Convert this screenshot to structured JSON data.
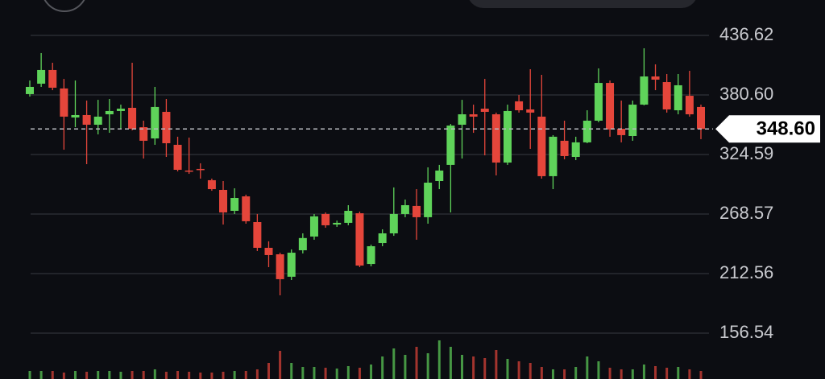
{
  "chart_data": {
    "type": "candlestick",
    "ylim": [
      156.54,
      436.62
    ],
    "yticks": [
      156.54,
      212.56,
      268.57,
      324.59,
      {
        "value": 380.6,
        "label": "380.60"
      },
      436.62
    ],
    "grid": true,
    "up_color": "#5fd35a",
    "down_color": "#e5463b",
    "last_price": {
      "value": 348.6,
      "label": "348.60"
    },
    "open": [
      381.4,
      391.2,
      404.1,
      386.7,
      359.4,
      361.7,
      352.6,
      362.4,
      365.5,
      368.5,
      350.3,
      339.7,
      364.7,
      333.7,
      309.5,
      311.0,
      300.4,
      291.3,
      271.6,
      285.2,
      261.0,
      236.8,
      230.7,
      209.6,
      234.5,
      247.4,
      268.6,
      258.7,
      260.3,
      269.3,
      221.6,
      241.3,
      250.4,
      268.6,
      276.2,
      265.6,
      299.6,
      314.8,
      352.6,
      362.4,
      367.7,
      362.4,
      317.0,
      374.6,
      367.0,
      360.2,
      304.2,
      337.5,
      322.3,
      336.0,
      356.4,
      391.9,
      348.8,
      342.0,
      371.5,
      398.0,
      392.7,
      366.2,
      379.8,
      369.3
    ],
    "high": [
      394.2,
      420.0,
      410.9,
      395.7,
      394.2,
      375.3,
      376.0,
      376.8,
      371.5,
      410.9,
      356.4,
      388.2,
      376.8,
      341.3,
      340.5,
      316.3,
      301.9,
      299.6,
      292.8,
      286.8,
      268.6,
      242.9,
      232.2,
      235.3,
      250.4,
      268.6,
      270.1,
      262.4,
      276.9,
      270.9,
      239.8,
      254.2,
      293.6,
      282.2,
      292.0,
      312.5,
      314.8,
      353.3,
      376.0,
      371.5,
      395.7,
      364.0,
      371.5,
      380.6,
      404.8,
      399.5,
      342.8,
      356.4,
      341.3,
      366.2,
      405.6,
      394.2,
      375.3,
      375.3,
      424.5,
      409.4,
      400.3,
      400.3,
      403.3,
      371.5
    ],
    "low": [
      379.1,
      388.2,
      385.1,
      329.1,
      350.3,
      315.5,
      343.5,
      345.0,
      348.8,
      347.3,
      320.8,
      333.7,
      322.3,
      308.7,
      306.4,
      301.9,
      290.5,
      258.7,
      268.6,
      259.5,
      233.8,
      218.6,
      192.1,
      206.5,
      231.5,
      244.4,
      255.7,
      256.5,
      258.0,
      218.6,
      219.4,
      238.3,
      248.1,
      265.6,
      244.4,
      259.5,
      292.0,
      270.1,
      320.8,
      345.0,
      323.8,
      304.9,
      314.8,
      364.0,
      329.9,
      301.9,
      292.0,
      320.1,
      319.3,
      335.2,
      354.9,
      341.3,
      336.0,
      337.5,
      370.8,
      385.1,
      364.0,
      362.4,
      360.2,
      339.0
    ],
    "close": [
      388.2,
      404.1,
      387.4,
      360.2,
      361.7,
      352.6,
      360.2,
      365.5,
      367.7,
      348.8,
      337.5,
      369.3,
      335.2,
      310.2,
      308.9,
      310.2,
      292.0,
      270.1,
      283.7,
      261.8,
      236.8,
      230.0,
      207.3,
      232.2,
      246.0,
      266.4,
      258.0,
      260.3,
      271.6,
      220.1,
      238.3,
      250.4,
      268.6,
      276.9,
      265.6,
      298.1,
      309.5,
      351.8,
      362.4,
      360.2,
      364.7,
      317.0,
      365.5,
      366.2,
      364.0,
      304.2,
      341.3,
      323.1,
      336.0,
      356.4,
      391.9,
      348.1,
      342.8,
      371.5,
      398.0,
      395.0,
      367.0,
      389.7,
      362.4,
      348.6
    ],
    "volume": [
      10,
      10,
      10,
      8,
      10,
      9,
      10,
      10,
      9,
      10,
      10,
      12,
      9,
      10,
      9,
      8,
      8,
      9,
      10,
      10,
      12,
      20,
      35,
      20,
      15,
      15,
      14,
      13,
      16,
      14,
      18,
      28,
      38,
      30,
      40,
      32,
      48,
      40,
      30,
      28,
      26,
      36,
      25,
      22,
      20,
      15,
      12,
      12,
      15,
      28,
      22,
      14,
      12,
      12,
      18,
      16,
      14,
      15,
      12,
      10
    ]
  }
}
